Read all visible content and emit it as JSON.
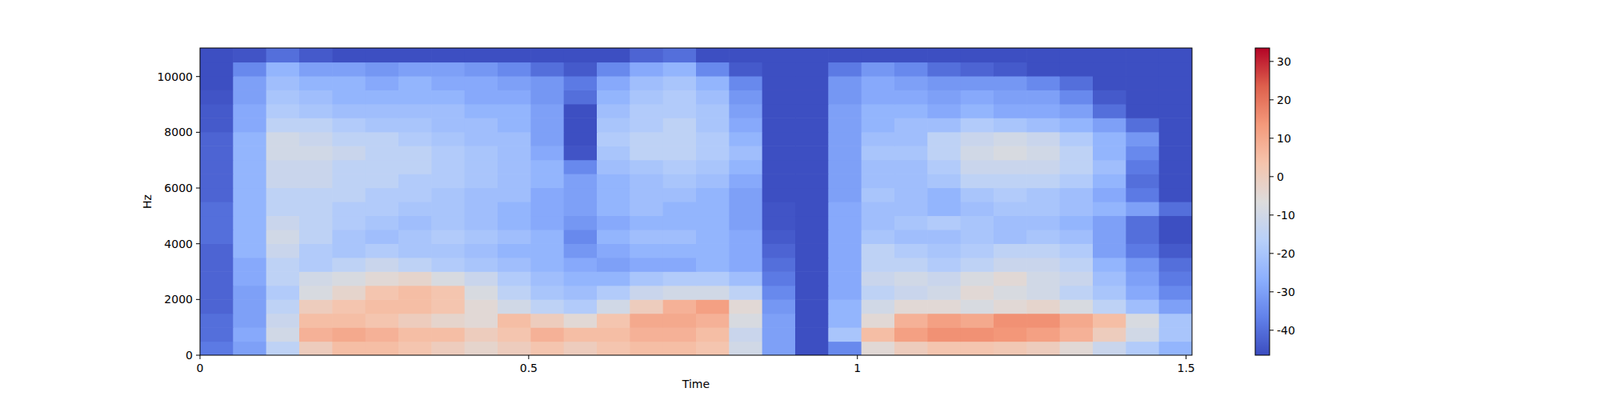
{
  "chart_data": {
    "type": "heatmap",
    "x_label": "Time",
    "y_label": "Hz",
    "xlim": [
      0,
      1.509
    ],
    "ylim": [
      0,
      11025
    ],
    "xticks": [
      0,
      0.5,
      1,
      1.5
    ],
    "yticks": [
      0,
      2000,
      4000,
      6000,
      8000,
      10000
    ],
    "values": [
      [
        -38,
        -30,
        -15,
        0,
        5,
        5,
        3,
        0,
        -3,
        0,
        3,
        0,
        3,
        5,
        5,
        3,
        -10,
        -30,
        -46,
        -35,
        -5,
        0,
        3,
        3,
        2,
        0,
        -5,
        -12,
        -18,
        -25
      ],
      [
        -40,
        -28,
        -10,
        8,
        10,
        8,
        5,
        5,
        0,
        3,
        8,
        5,
        5,
        8,
        8,
        5,
        -12,
        -30,
        -46,
        -20,
        5,
        12,
        15,
        15,
        14,
        12,
        8,
        0,
        -10,
        -20
      ],
      [
        -40,
        -30,
        -12,
        5,
        5,
        3,
        0,
        -3,
        -5,
        5,
        0,
        -5,
        3,
        10,
        10,
        8,
        -8,
        -30,
        -46,
        -25,
        -5,
        8,
        12,
        10,
        15,
        15,
        10,
        5,
        -8,
        -20
      ],
      [
        -42,
        -30,
        -15,
        0,
        3,
        5,
        5,
        3,
        -5,
        -10,
        -15,
        -18,
        -10,
        0,
        8,
        12,
        -5,
        -32,
        -46,
        -25,
        -10,
        -5,
        -5,
        -8,
        -5,
        -3,
        -8,
        -15,
        -22,
        -30
      ],
      [
        -42,
        -30,
        -18,
        -8,
        -3,
        3,
        5,
        3,
        -8,
        -15,
        -20,
        -22,
        -18,
        -12,
        -10,
        -10,
        -15,
        -35,
        -46,
        -28,
        -15,
        -12,
        -10,
        -5,
        -8,
        -10,
        -15,
        -20,
        -28,
        -35
      ],
      [
        -42,
        -28,
        -15,
        -10,
        -8,
        -5,
        -3,
        -8,
        -12,
        -18,
        -22,
        -25,
        -25,
        -20,
        -18,
        -18,
        -22,
        -38,
        -46,
        -28,
        -12,
        -10,
        -12,
        -8,
        -5,
        -10,
        -12,
        -22,
        -30,
        -38
      ],
      [
        -42,
        -28,
        -15,
        -18,
        -15,
        -12,
        -15,
        -18,
        -20,
        -22,
        -25,
        -28,
        -30,
        -28,
        -28,
        -25,
        -28,
        -40,
        -46,
        -28,
        -15,
        -15,
        -18,
        -15,
        -12,
        -12,
        -15,
        -25,
        -32,
        -40
      ],
      [
        -42,
        -25,
        -12,
        -18,
        -20,
        -18,
        -20,
        -20,
        -22,
        -25,
        -25,
        -32,
        -28,
        -25,
        -25,
        -25,
        -28,
        -42,
        -46,
        -28,
        -15,
        -18,
        -20,
        -18,
        -15,
        -15,
        -18,
        -30,
        -38,
        -44
      ],
      [
        -40,
        -25,
        -10,
        -15,
        -20,
        -22,
        -20,
        -18,
        -20,
        -22,
        -25,
        -35,
        -25,
        -22,
        -22,
        -25,
        -28,
        -44,
        -46,
        -28,
        -20,
        -22,
        -22,
        -20,
        -22,
        -20,
        -22,
        -30,
        -40,
        -46
      ],
      [
        -40,
        -25,
        -12,
        -15,
        -18,
        -20,
        -22,
        -20,
        -22,
        -25,
        -28,
        -32,
        -28,
        -25,
        -25,
        -25,
        -30,
        -45,
        -46,
        -28,
        -22,
        -20,
        -18,
        -20,
        -22,
        -22,
        -25,
        -30,
        -40,
        -46
      ],
      [
        -40,
        -25,
        -15,
        -15,
        -18,
        -18,
        -20,
        -20,
        -22,
        -25,
        -28,
        -30,
        -25,
        -22,
        -25,
        -25,
        -30,
        -45,
        -46,
        -28,
        -22,
        -22,
        -25,
        -22,
        -20,
        -20,
        -22,
        -25,
        -30,
        -40
      ],
      [
        -42,
        -25,
        -15,
        -15,
        -15,
        -18,
        -18,
        -20,
        -22,
        -22,
        -28,
        -30,
        -25,
        -22,
        -22,
        -25,
        -30,
        -46,
        -46,
        -30,
        -20,
        -22,
        -25,
        -20,
        -18,
        -20,
        -22,
        -28,
        -38,
        -46
      ],
      [
        -42,
        -25,
        -12,
        -12,
        -15,
        -15,
        -18,
        -18,
        -20,
        -22,
        -25,
        -30,
        -25,
        -22,
        -20,
        -22,
        -28,
        -46,
        -46,
        -30,
        -22,
        -22,
        -20,
        -15,
        -15,
        -15,
        -18,
        -25,
        -40,
        -46
      ],
      [
        -42,
        -25,
        -12,
        -12,
        -15,
        -15,
        -15,
        -18,
        -20,
        -22,
        -25,
        -35,
        -22,
        -20,
        -18,
        -20,
        -25,
        -46,
        -46,
        -30,
        -22,
        -22,
        -18,
        -12,
        -12,
        -12,
        -15,
        -22,
        -38,
        -46
      ],
      [
        -42,
        -25,
        -10,
        -10,
        -12,
        -15,
        -15,
        -18,
        -20,
        -22,
        -28,
        -45,
        -20,
        -15,
        -15,
        -18,
        -22,
        -46,
        -46,
        -30,
        -20,
        -20,
        -15,
        -10,
        -8,
        -10,
        -15,
        -25,
        -35,
        -46
      ],
      [
        -42,
        -25,
        -10,
        -12,
        -15,
        -15,
        -18,
        -20,
        -22,
        -22,
        -30,
        -46,
        -18,
        -15,
        -15,
        -18,
        -25,
        -46,
        -46,
        -30,
        -22,
        -22,
        -15,
        -12,
        -10,
        -12,
        -18,
        -25,
        -32,
        -46
      ],
      [
        -44,
        -28,
        -15,
        -15,
        -18,
        -20,
        -20,
        -22,
        -22,
        -25,
        -30,
        -46,
        -20,
        -18,
        -15,
        -20,
        -28,
        -46,
        -46,
        -30,
        -25,
        -22,
        -22,
        -18,
        -20,
        -22,
        -25,
        -30,
        -40,
        -46
      ],
      [
        -44,
        -28,
        -18,
        -20,
        -22,
        -22,
        -22,
        -22,
        -25,
        -25,
        -30,
        -46,
        -22,
        -18,
        -18,
        -20,
        -30,
        -46,
        -46,
        -30,
        -25,
        -25,
        -28,
        -25,
        -28,
        -28,
        -30,
        -40,
        -46,
        -46
      ],
      [
        -45,
        -30,
        -20,
        -22,
        -25,
        -25,
        -25,
        -25,
        -28,
        -28,
        -32,
        -40,
        -25,
        -20,
        -18,
        -22,
        -32,
        -46,
        -46,
        -32,
        -28,
        -28,
        -30,
        -28,
        -30,
        -30,
        -35,
        -44,
        -46,
        -46
      ],
      [
        -46,
        -30,
        -22,
        -25,
        -25,
        -28,
        -25,
        -28,
        -28,
        -30,
        -32,
        -38,
        -28,
        -22,
        -20,
        -25,
        -35,
        -46,
        -46,
        -32,
        -28,
        -30,
        -32,
        -32,
        -32,
        -35,
        -40,
        -46,
        -46,
        -46
      ],
      [
        -46,
        -35,
        -25,
        -30,
        -30,
        -32,
        -30,
        -30,
        -32,
        -35,
        -40,
        -44,
        -35,
        -28,
        -25,
        -35,
        -44,
        -46,
        -46,
        -38,
        -32,
        -35,
        -40,
        -42,
        -44,
        -46,
        -46,
        -46,
        -46,
        -46
      ],
      [
        -46,
        -45,
        -40,
        -44,
        -46,
        -46,
        -46,
        -46,
        -46,
        -46,
        -46,
        -46,
        -46,
        -42,
        -40,
        -46,
        -46,
        -46,
        -46,
        -46,
        -46,
        -46,
        -46,
        -46,
        -46,
        -46,
        -46,
        -46,
        -46,
        -46
      ]
    ],
    "colorbar": {
      "range": [
        -46.5,
        33.5
      ],
      "ticks": [
        -40,
        -30,
        -20,
        -10,
        0,
        10,
        20,
        30
      ]
    }
  }
}
